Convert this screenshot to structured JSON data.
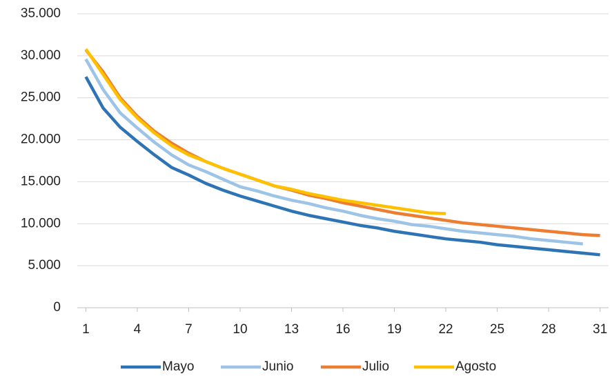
{
  "chart_data": {
    "type": "line",
    "x": [
      1,
      2,
      3,
      4,
      5,
      6,
      7,
      8,
      9,
      10,
      11,
      12,
      13,
      14,
      15,
      16,
      17,
      18,
      19,
      20,
      21,
      22,
      23,
      24,
      25,
      26,
      27,
      28,
      29,
      30,
      31
    ],
    "series": [
      {
        "name": "Mayo",
        "color": "#2e74b5",
        "values": [
          27500,
          23800,
          21500,
          19800,
          18200,
          16700,
          15800,
          14800,
          14000,
          13300,
          12700,
          12100,
          11500,
          11000,
          10600,
          10200,
          9800,
          9500,
          9100,
          8800,
          8500,
          8200,
          8000,
          7800,
          7500,
          7300,
          7100,
          6900,
          6700,
          6500,
          6300
        ]
      },
      {
        "name": "Junio",
        "color": "#9dc3e6",
        "values": [
          29600,
          26000,
          23200,
          21400,
          19700,
          18200,
          17000,
          16200,
          15300,
          14400,
          13900,
          13300,
          12800,
          12400,
          11900,
          11500,
          11000,
          10600,
          10300,
          9900,
          9700,
          9400,
          9100,
          8900,
          8700,
          8500,
          8200,
          8000,
          7800,
          7600,
          null
        ]
      },
      {
        "name": "Julio",
        "color": "#ed7d31",
        "values": [
          30700,
          28100,
          25000,
          22800,
          21000,
          19600,
          18400,
          17400,
          16600,
          15900,
          15200,
          14500,
          14000,
          13400,
          13000,
          12500,
          12100,
          11700,
          11300,
          11000,
          10700,
          10400,
          10100,
          9900,
          9700,
          9500,
          9300,
          9100,
          8900,
          8700,
          8600
        ]
      },
      {
        "name": "Agosto",
        "color": "#ffc000",
        "values": [
          30800,
          27800,
          24800,
          22600,
          20800,
          19300,
          18200,
          17400,
          16600,
          15900,
          15200,
          14500,
          14100,
          13600,
          13200,
          12800,
          12500,
          12200,
          11900,
          11600,
          11300,
          11200,
          null,
          null,
          null,
          null,
          null,
          null,
          null,
          null,
          null
        ]
      }
    ],
    "xlim": [
      0.5,
      31.5
    ],
    "xticks": [
      1,
      4,
      7,
      10,
      13,
      16,
      19,
      22,
      25,
      28,
      31
    ],
    "ylim": [
      0,
      35000
    ],
    "yticks": [
      0,
      {
        "value": 5000,
        "label": "5.000"
      },
      {
        "value": 10000,
        "label": "10.000"
      },
      {
        "value": 15000,
        "label": "15.000"
      },
      {
        "value": 20000,
        "label": "20.000"
      },
      {
        "value": 25000,
        "label": "25.000"
      },
      {
        "value": 30000,
        "label": "30.000"
      },
      {
        "value": 35000,
        "label": "35.000"
      }
    ],
    "grid": true,
    "legend": "bottom"
  }
}
